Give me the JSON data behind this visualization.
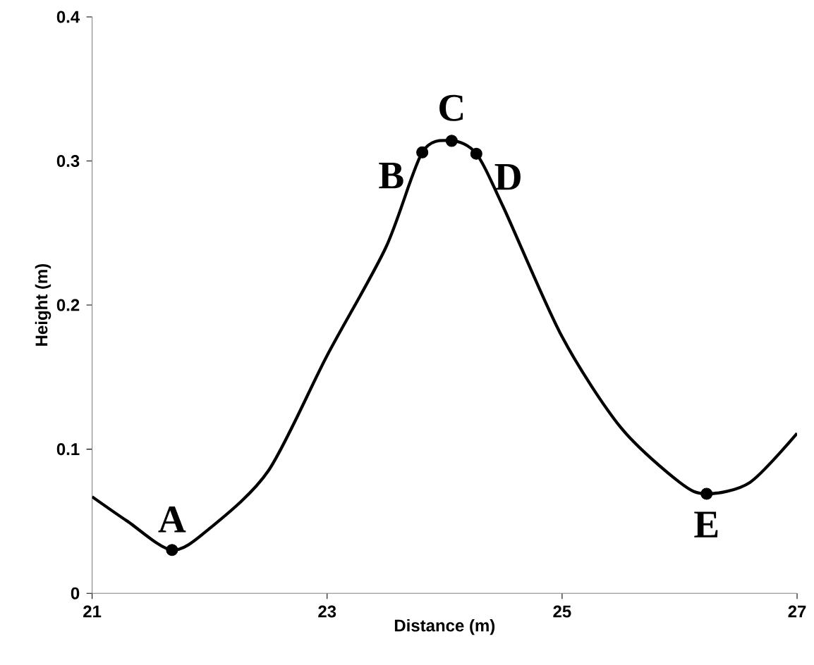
{
  "chart_data": {
    "type": "line",
    "xlabel": "Distance (m)",
    "ylabel": "Height (m)",
    "xlim": [
      21,
      27
    ],
    "ylim": [
      0,
      0.4
    ],
    "xticks": [
      21,
      23,
      25,
      27
    ],
    "yticks": [
      0,
      0.1,
      0.2,
      0.3,
      0.4
    ],
    "grid": false,
    "series": [
      {
        "color": "#000000",
        "marker": "none",
        "x": [
          21,
          21.3,
          21.68,
          22.0,
          22.5,
          23.0,
          23.5,
          23.81,
          24.06,
          24.27,
          24.5,
          25.0,
          25.5,
          26.0,
          26.23,
          26.6,
          27
        ],
        "values": [
          0.067,
          0.05,
          0.03,
          0.045,
          0.085,
          0.165,
          0.24,
          0.306,
          0.314,
          0.305,
          0.268,
          0.178,
          0.115,
          0.077,
          0.069,
          0.077,
          0.111
        ]
      },
      {
        "type": "scatter",
        "color": "#000000",
        "marker": "circle",
        "x": [
          21.68,
          23.81,
          24.06,
          24.27,
          26.23
        ],
        "values": [
          0.03,
          0.306,
          0.314,
          0.305,
          0.069
        ]
      }
    ],
    "annotations": [
      {
        "text": "A",
        "x": 21.68,
        "y": 0.03
      },
      {
        "text": "B",
        "x": 23.81,
        "y": 0.306
      },
      {
        "text": "C",
        "x": 24.06,
        "y": 0.314
      },
      {
        "text": "D",
        "x": 24.27,
        "y": 0.305
      },
      {
        "text": "E",
        "x": 26.23,
        "y": 0.069
      }
    ]
  }
}
